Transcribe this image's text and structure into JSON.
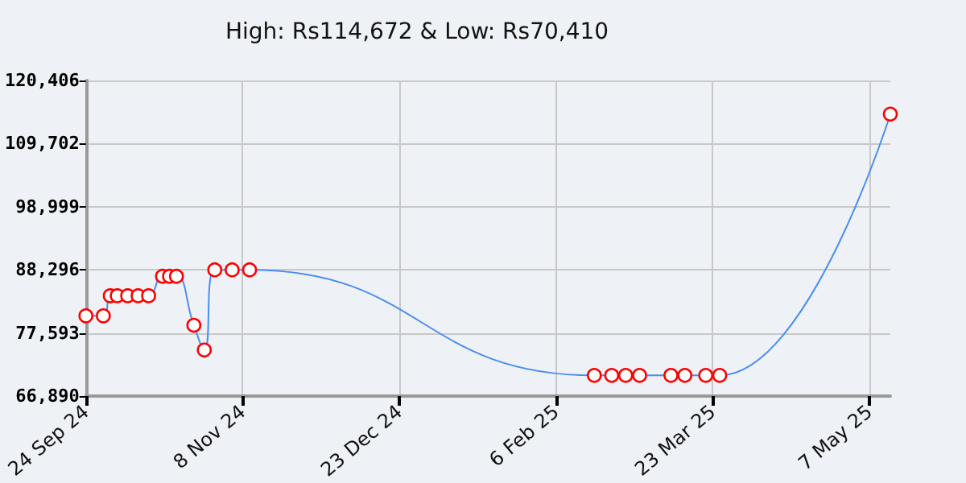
{
  "chart_data": {
    "type": "line",
    "title": "High: Rs114,672 & Low: Rs70,410",
    "x": [
      "2024-09-24",
      "2024-09-29",
      "2024-10-01",
      "2024-10-03",
      "2024-10-06",
      "2024-10-09",
      "2024-10-12",
      "2024-10-16",
      "2024-10-18",
      "2024-10-20",
      "2024-10-25",
      "2024-10-28",
      "2024-10-31",
      "2024-11-05",
      "2024-11-10",
      "2025-02-17",
      "2025-02-22",
      "2025-02-26",
      "2025-03-02",
      "2025-03-11",
      "2025-03-15",
      "2025-03-21",
      "2025-03-25",
      "2025-05-13"
    ],
    "series": [
      {
        "color": "#4a8ef0",
        "colors": [
          "#ff0000",
          "#ff0000",
          "#ff0000",
          "#ff0000",
          "#ff0000",
          "#ff0000",
          "#ff0000",
          "#ff0000",
          "#ff0000",
          "#ff0000",
          "#ff0000",
          "#ff0000",
          "#ff0000",
          "#ff0000",
          "#ff0000",
          "#ff0000",
          "#ff0000",
          "#ff0000",
          "#ff0000",
          "#ff0000",
          "#ff0000",
          "#ff0000",
          "#ff0000",
          "#ff0000"
        ],
        "values": [
          80500,
          80500,
          83900,
          83900,
          83900,
          83900,
          83900,
          87200,
          87200,
          87200,
          78900,
          74700,
          88300,
          88300,
          88300,
          70400,
          70400,
          70400,
          70400,
          70400,
          70400,
          70400,
          70400,
          114700
        ]
      }
    ],
    "xlim": [
      "2024-09-24",
      "2025-05-13"
    ],
    "xticks": [
      {
        "value": "2024-09-24",
        "label": "24 Sep 24"
      },
      {
        "value": "2024-11-08",
        "label": "8 Nov 24"
      },
      {
        "value": "2024-12-23",
        "label": "23 Dec 24"
      },
      {
        "value": "2025-02-06",
        "label": "6 Feb 25"
      },
      {
        "value": "2025-03-23",
        "label": "23 Mar 25"
      },
      {
        "value": "2025-05-07",
        "label": "7 May 25"
      }
    ],
    "ylim": [
      66890,
      120406
    ],
    "yticks": [
      {
        "value": 66890,
        "label": "66,890"
      },
      {
        "value": 77593,
        "label": "77,593"
      },
      {
        "value": 88296,
        "label": "88,296"
      },
      {
        "value": 98999,
        "label": "98,999"
      },
      {
        "value": 109702,
        "label": "109,702"
      },
      {
        "value": 120406,
        "label": "120,406"
      }
    ],
    "grid": true,
    "marker": "circle"
  }
}
